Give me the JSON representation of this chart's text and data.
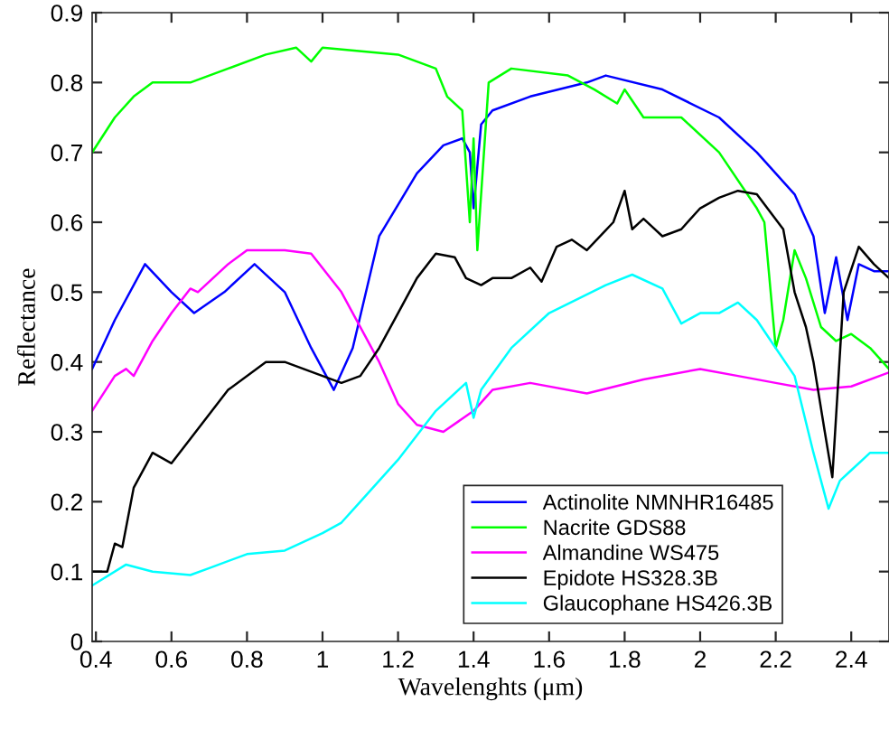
{
  "chart_data": {
    "type": "line",
    "xlabel": "Wavelenghts (μm)",
    "ylabel": "Reflectance",
    "xlim": [
      0.39,
      2.5
    ],
    "ylim": [
      0,
      0.9
    ],
    "xticks": [
      0.4,
      0.6,
      0.8,
      1,
      1.2,
      1.4,
      1.6,
      1.8,
      2,
      2.2,
      2.4
    ],
    "yticks": [
      0,
      0.1,
      0.2,
      0.3,
      0.4,
      0.5,
      0.6,
      0.7,
      0.8,
      0.9
    ],
    "legend": "bottom right",
    "grid": false,
    "marker": "none",
    "line_style": "solid",
    "series": [
      {
        "name": "Actinolite NMNHR16485",
        "color": "#0000ff",
        "x": [
          0.39,
          0.45,
          0.53,
          0.6,
          0.66,
          0.74,
          0.82,
          0.9,
          0.97,
          1.03,
          1.08,
          1.15,
          1.25,
          1.32,
          1.37,
          1.39,
          1.4,
          1.42,
          1.45,
          1.55,
          1.7,
          1.75,
          1.9,
          2.05,
          2.15,
          2.25,
          2.3,
          2.33,
          2.36,
          2.39,
          2.42,
          2.46,
          2.5
        ],
        "values": [
          0.39,
          0.46,
          0.54,
          0.5,
          0.47,
          0.5,
          0.54,
          0.5,
          0.42,
          0.36,
          0.42,
          0.58,
          0.67,
          0.71,
          0.72,
          0.7,
          0.62,
          0.74,
          0.76,
          0.78,
          0.8,
          0.81,
          0.79,
          0.75,
          0.7,
          0.64,
          0.58,
          0.47,
          0.55,
          0.46,
          0.54,
          0.53,
          0.53
        ]
      },
      {
        "name": "Nacrite GDS88",
        "color": "#00ff00",
        "x": [
          0.39,
          0.45,
          0.5,
          0.55,
          0.65,
          0.75,
          0.85,
          0.93,
          0.97,
          1.0,
          1.2,
          1.25,
          1.3,
          1.33,
          1.37,
          1.39,
          1.4,
          1.41,
          1.44,
          1.5,
          1.65,
          1.72,
          1.78,
          1.8,
          1.85,
          1.95,
          2.05,
          2.15,
          2.17,
          2.2,
          2.22,
          2.25,
          2.28,
          2.32,
          2.36,
          2.4,
          2.45,
          2.5
        ],
        "values": [
          0.7,
          0.75,
          0.78,
          0.8,
          0.8,
          0.82,
          0.84,
          0.85,
          0.83,
          0.85,
          0.84,
          0.83,
          0.82,
          0.78,
          0.76,
          0.6,
          0.72,
          0.56,
          0.8,
          0.82,
          0.81,
          0.79,
          0.77,
          0.79,
          0.75,
          0.75,
          0.7,
          0.62,
          0.6,
          0.42,
          0.46,
          0.56,
          0.52,
          0.45,
          0.43,
          0.44,
          0.42,
          0.39
        ]
      },
      {
        "name": "Almandine WS475",
        "color": "#ff00ff",
        "x": [
          0.39,
          0.45,
          0.48,
          0.5,
          0.55,
          0.6,
          0.65,
          0.67,
          0.75,
          0.8,
          0.9,
          0.97,
          1.05,
          1.15,
          1.2,
          1.25,
          1.32,
          1.4,
          1.45,
          1.55,
          1.7,
          1.85,
          2.0,
          2.1,
          2.2,
          2.3,
          2.4,
          2.5
        ],
        "values": [
          0.33,
          0.38,
          0.39,
          0.38,
          0.43,
          0.47,
          0.505,
          0.5,
          0.54,
          0.56,
          0.56,
          0.555,
          0.5,
          0.4,
          0.34,
          0.31,
          0.3,
          0.33,
          0.36,
          0.37,
          0.355,
          0.375,
          0.39,
          0.38,
          0.37,
          0.36,
          0.365,
          0.385
        ]
      },
      {
        "name": "Epidote HS328.3B",
        "color": "#000000",
        "x": [
          0.39,
          0.43,
          0.45,
          0.47,
          0.5,
          0.55,
          0.6,
          0.65,
          0.75,
          0.85,
          0.9,
          0.95,
          1.05,
          1.1,
          1.15,
          1.2,
          1.25,
          1.3,
          1.35,
          1.38,
          1.42,
          1.45,
          1.5,
          1.55,
          1.58,
          1.62,
          1.66,
          1.7,
          1.77,
          1.8,
          1.82,
          1.85,
          1.9,
          1.95,
          2.0,
          2.05,
          2.1,
          2.15,
          2.22,
          2.25,
          2.28,
          2.3,
          2.33,
          2.35,
          2.38,
          2.42,
          2.46,
          2.5
        ],
        "values": [
          0.1,
          0.1,
          0.14,
          0.135,
          0.22,
          0.27,
          0.255,
          0.29,
          0.36,
          0.4,
          0.4,
          0.39,
          0.37,
          0.38,
          0.42,
          0.47,
          0.52,
          0.555,
          0.55,
          0.52,
          0.51,
          0.52,
          0.52,
          0.535,
          0.515,
          0.565,
          0.575,
          0.56,
          0.6,
          0.645,
          0.59,
          0.605,
          0.58,
          0.59,
          0.62,
          0.635,
          0.645,
          0.64,
          0.59,
          0.5,
          0.45,
          0.4,
          0.3,
          0.235,
          0.5,
          0.565,
          0.54,
          0.52
        ]
      },
      {
        "name": "Glaucophane HS426.3B",
        "color": "#00ffff",
        "x": [
          0.39,
          0.48,
          0.55,
          0.65,
          0.7,
          0.8,
          0.9,
          1.0,
          1.05,
          1.1,
          1.2,
          1.3,
          1.38,
          1.4,
          1.42,
          1.5,
          1.6,
          1.75,
          1.82,
          1.9,
          1.95,
          2.0,
          2.05,
          2.1,
          2.15,
          2.2,
          2.25,
          2.3,
          2.34,
          2.37,
          2.4,
          2.45,
          2.5
        ],
        "values": [
          0.08,
          0.11,
          0.1,
          0.095,
          0.105,
          0.125,
          0.13,
          0.155,
          0.17,
          0.2,
          0.26,
          0.33,
          0.37,
          0.32,
          0.36,
          0.42,
          0.47,
          0.51,
          0.525,
          0.505,
          0.455,
          0.47,
          0.47,
          0.485,
          0.46,
          0.42,
          0.38,
          0.27,
          0.19,
          0.23,
          0.245,
          0.27,
          0.27
        ]
      }
    ]
  }
}
